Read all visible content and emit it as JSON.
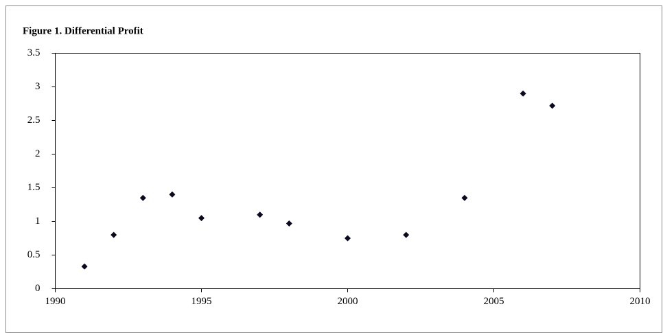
{
  "chart_data": {
    "type": "scatter",
    "title": "Figure 1. Differential Profit",
    "x": [
      1991,
      1992,
      1993,
      1994,
      1995,
      1997,
      1998,
      2000,
      2002,
      2004,
      2006,
      2007
    ],
    "values": [
      0.33,
      0.8,
      1.35,
      1.4,
      1.05,
      1.1,
      0.97,
      0.75,
      0.8,
      1.35,
      2.9,
      2.72
    ],
    "color": "#0a0a1e",
    "xlim": [
      1990,
      2010
    ],
    "xticks": [
      1990,
      1995,
      2000,
      2005,
      2010
    ],
    "ylim": [
      0,
      3.5
    ],
    "yticks": [
      0,
      0.5,
      1,
      1.5,
      2,
      2.5,
      3,
      3.5
    ],
    "grid": false
  }
}
